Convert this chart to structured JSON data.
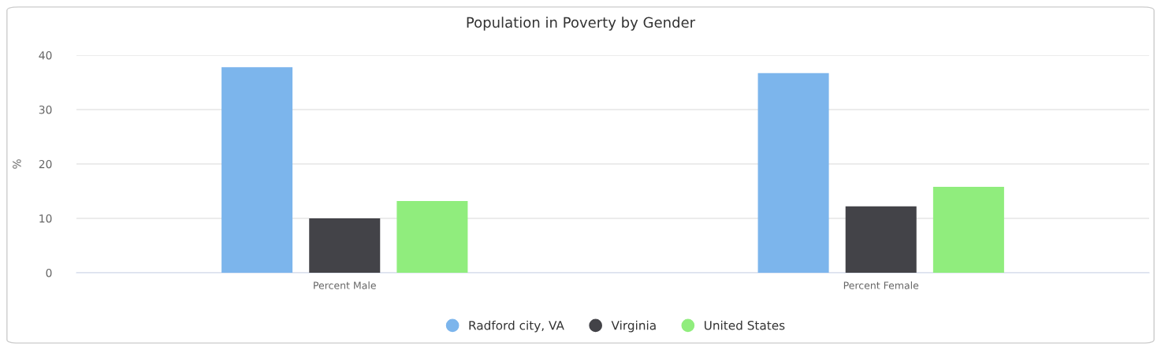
{
  "chart_data": {
    "type": "bar",
    "title": "Population in Poverty by Gender",
    "ylabel": "%",
    "categories": [
      "Percent Male",
      "Percent Female"
    ],
    "series": [
      {
        "name": "Radford city, VA",
        "color": "#7cb5ec",
        "values": [
          37.8,
          36.7
        ]
      },
      {
        "name": "Virginia",
        "color": "#434348",
        "values": [
          10.0,
          12.2
        ]
      },
      {
        "name": "United States",
        "color": "#90ed7d",
        "values": [
          13.2,
          15.8
        ]
      }
    ],
    "ylim": [
      0,
      40
    ],
    "yticks": [
      0,
      10,
      20,
      30,
      40
    ],
    "grid": "y",
    "legend": "bottom"
  }
}
